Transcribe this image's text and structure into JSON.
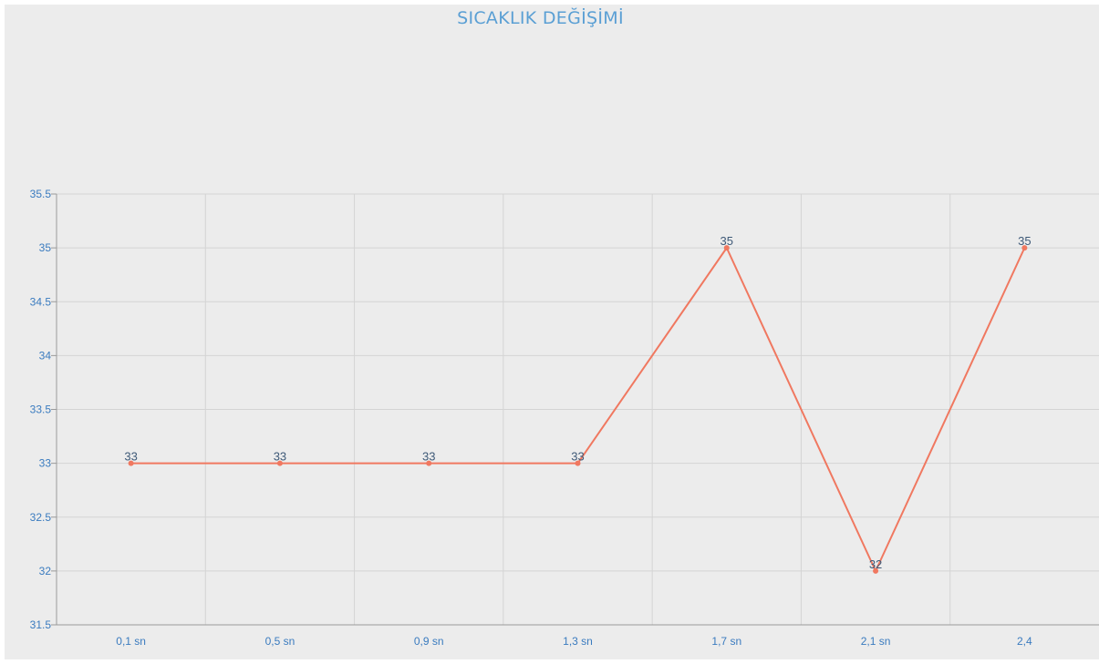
{
  "chart_data": {
    "type": "line",
    "title": "SICAKLIK DEĞİŞİMİ",
    "xlabel": "",
    "ylabel": "",
    "categories": [
      "0,1 sn",
      "0,5 sn",
      "0,9 sn",
      "1,3 sn",
      "1,7 sn",
      "2,1 sn",
      "2,4"
    ],
    "series": [
      {
        "values": [
          33,
          33,
          33,
          33,
          35,
          32,
          35
        ],
        "color": "#f07860"
      }
    ],
    "ylim": [
      31.5,
      35.5
    ],
    "yticks": [
      31.5,
      32,
      32.5,
      33,
      33.5,
      34,
      34.5,
      35,
      35.5
    ],
    "ytick_labels": [
      "31.5",
      "32",
      "32.5",
      "33",
      "33.5",
      "34",
      "34.5",
      "35",
      "35.5"
    ],
    "data_labels": [
      "33",
      "33",
      "33",
      "33",
      "35",
      "32",
      "35"
    ],
    "grid": true,
    "legend": "none",
    "colors": {
      "title": "#5a9fd4",
      "tick": "#3a7bbf",
      "grid": "#d4d4d4",
      "axis": "#9a9a9a",
      "line": "#f07860",
      "data_label": "#3f5a78",
      "background": "#ececec"
    }
  }
}
